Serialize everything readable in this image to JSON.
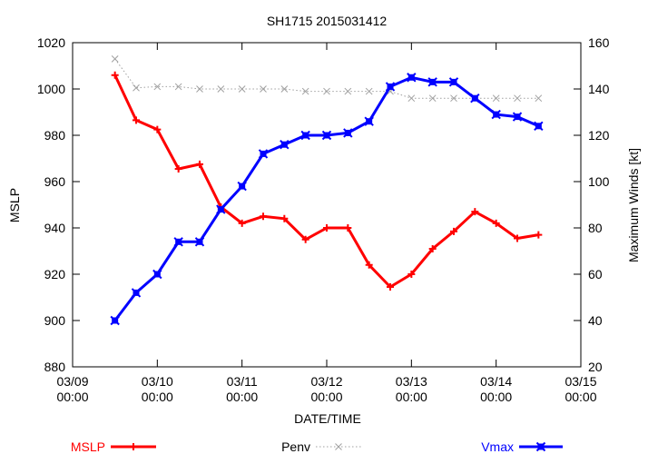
{
  "chart_data": {
    "type": "line",
    "title": "SH1715 2015031412",
    "xlabel": "DATE/TIME",
    "ylabel_left": "MSLP",
    "ylabel_right": "Maximum Winds [kt]",
    "x_ticks": [
      {
        "date": "03/09",
        "time": "00:00"
      },
      {
        "date": "03/10",
        "time": "00:00"
      },
      {
        "date": "03/11",
        "time": "00:00"
      },
      {
        "date": "03/12",
        "time": "00:00"
      },
      {
        "date": "03/13",
        "time": "00:00"
      },
      {
        "date": "03/14",
        "time": "00:00"
      },
      {
        "date": "03/15",
        "time": "00:00"
      }
    ],
    "xlim": [
      "2015-03-09 00:00",
      "2015-03-15 00:00"
    ],
    "ylim_left": [
      880,
      1020
    ],
    "ylim_right": [
      20,
      160
    ],
    "y_ticks_left": [
      880,
      900,
      920,
      940,
      960,
      980,
      1000,
      1020
    ],
    "y_ticks_right": [
      20,
      40,
      60,
      80,
      100,
      120,
      140,
      160
    ],
    "x": [
      "2015-03-09 12:00",
      "2015-03-09 18:00",
      "2015-03-10 00:00",
      "2015-03-10 06:00",
      "2015-03-10 12:00",
      "2015-03-10 18:00",
      "2015-03-11 00:00",
      "2015-03-11 06:00",
      "2015-03-11 12:00",
      "2015-03-11 18:00",
      "2015-03-12 00:00",
      "2015-03-12 06:00",
      "2015-03-12 12:00",
      "2015-03-12 18:00",
      "2015-03-13 00:00",
      "2015-03-13 06:00",
      "2015-03-13 12:00",
      "2015-03-13 18:00",
      "2015-03-14 00:00",
      "2015-03-14 06:00",
      "2015-03-14 12:00"
    ],
    "series": [
      {
        "name": "MSLP",
        "axis": "left",
        "color": "#ff0000",
        "marker": "plus",
        "line": "solid",
        "values": [
          1006,
          986.5,
          982.5,
          965.5,
          967.5,
          949,
          942,
          945,
          944,
          935,
          940,
          940,
          924,
          914.5,
          920,
          931,
          938.5,
          947,
          942,
          935.5,
          937
        ]
      },
      {
        "name": "Penv",
        "axis": "left",
        "color": "#a0a0a0",
        "marker": "cross",
        "line": "dotted",
        "values": [
          1013,
          1000.5,
          1001,
          1001,
          1000,
          1000,
          1000,
          1000,
          1000,
          999,
          999,
          999,
          999,
          999,
          996,
          996,
          996,
          996,
          996,
          996,
          996
        ]
      },
      {
        "name": "Vmax",
        "axis": "right",
        "color": "#0000ff",
        "marker": "filled-box",
        "line": "solid",
        "values": [
          40,
          52,
          60,
          74,
          74,
          88,
          98,
          112,
          116,
          120,
          120,
          121,
          126,
          141,
          145,
          143,
          143,
          136,
          129,
          128,
          124
        ]
      }
    ],
    "grid": false,
    "legend_position": "bottom"
  }
}
